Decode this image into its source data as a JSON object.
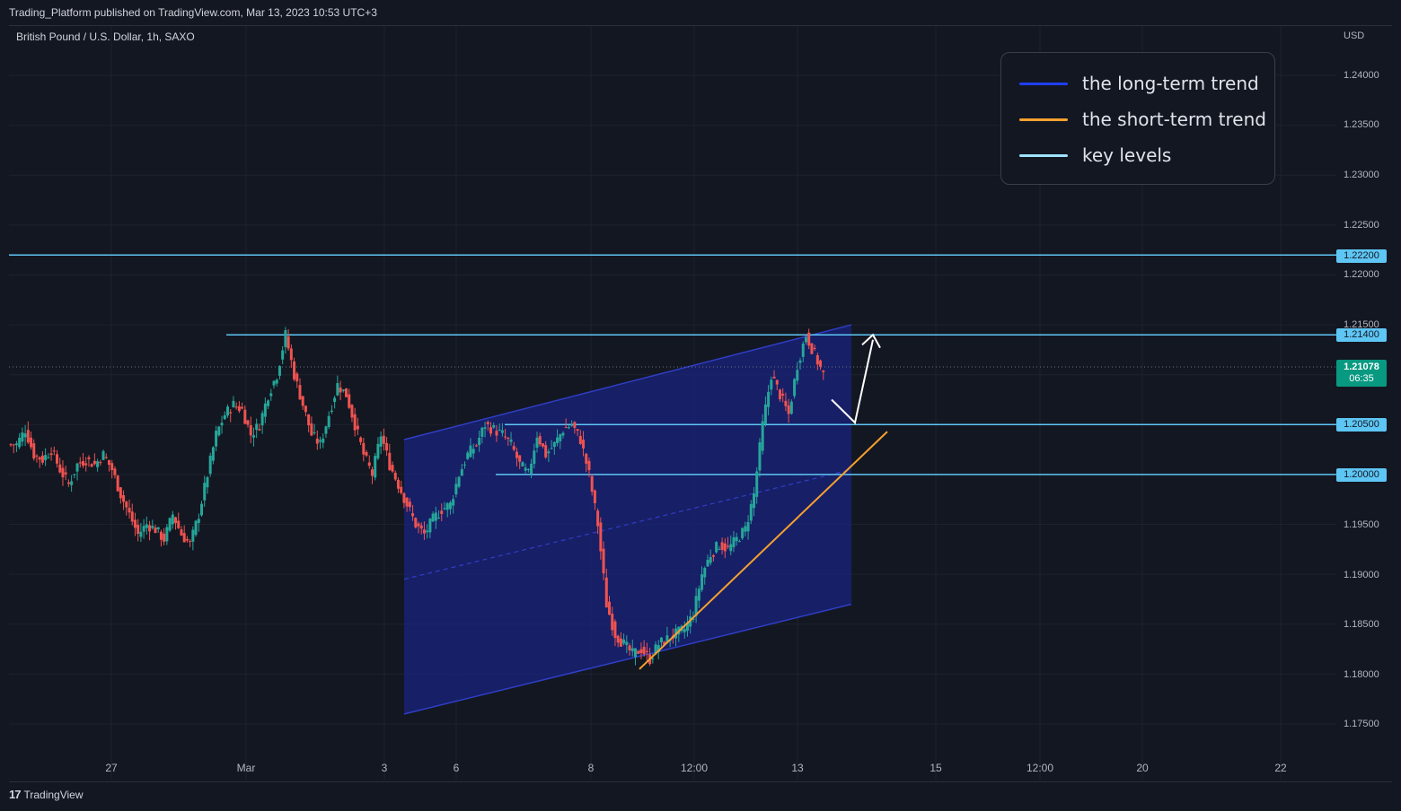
{
  "header": {
    "publish_text": "Trading_Platform published on TradingView.com, Mar 13, 2023 10:53 UTC+3"
  },
  "symbol": {
    "title": "British Pound / U.S. Dollar, 1h, SAXO",
    "currency": "USD"
  },
  "legend": {
    "items": [
      {
        "label": "the long-term trend",
        "color": "#1e3ff2"
      },
      {
        "label": "the short-term trend",
        "color": "#f7a12f"
      },
      {
        "label": "key levels",
        "color": "#9fe3ff"
      }
    ]
  },
  "price_axis": {
    "ticks": [
      "1.24000",
      "1.23500",
      "1.23000",
      "1.22500",
      "1.22000",
      "1.21500",
      "1.19500",
      "1.19000",
      "1.18500",
      "1.18000",
      "1.17500"
    ],
    "key_levels": [
      "1.22200",
      "1.21400",
      "1.20500",
      "1.20000"
    ],
    "current_price": "1.21078",
    "countdown": "06:35"
  },
  "time_axis": {
    "ticks": [
      "27",
      "Mar",
      "3",
      "6",
      "8",
      "12:00",
      "13",
      "15",
      "12:00",
      "20",
      "22"
    ]
  },
  "footer": {
    "brand": "TradingView",
    "logo_glyph": "17"
  },
  "colors": {
    "background": "#131722",
    "key_level": "#5ec6f4",
    "channel_fill": "#1a237e",
    "channel_line": "#2f3ec7",
    "up_candle": "#26a69a",
    "down_candle": "#ef5350",
    "short_trend": "#f7a12f"
  },
  "chart_data": {
    "type": "candlestick",
    "title": "British Pound / U.S. Dollar, 1h, SAXO",
    "y_unit": "USD",
    "ylim": [
      1.172,
      1.2435
    ],
    "key_levels": [
      1.222,
      1.214,
      1.205,
      1.2
    ],
    "current_price": 1.21078,
    "price_path": [
      [
        1.203,
        1.2045,
        1.202,
        1.2015,
        1.2025,
        1.2005,
        1.199,
        1.201,
        1.2015,
        1.201
      ],
      [
        1.202,
        1.2005,
        1.198,
        1.196,
        1.194,
        1.195,
        1.1945,
        1.1935,
        1.196,
        1.194
      ],
      [
        1.193,
        1.196,
        1.2,
        1.204,
        1.206,
        1.207,
        1.2065,
        1.204,
        1.205,
        1.208
      ],
      [
        1.21,
        1.214,
        1.21,
        1.207,
        1.204,
        1.203,
        1.206,
        1.209,
        1.208,
        1.205
      ],
      [
        1.202,
        1.2,
        1.204,
        1.201,
        1.199,
        1.197,
        1.195,
        1.194,
        1.1955,
        1.1965
      ],
      [
        1.197,
        1.2,
        1.202,
        1.203,
        1.205,
        1.2045,
        1.204,
        1.203,
        1.201,
        1.2
      ],
      [
        1.204,
        1.202,
        1.203,
        1.2045,
        1.205,
        1.2035,
        1.2,
        1.195,
        1.187,
        1.184
      ],
      [
        1.183,
        1.182,
        1.1825,
        1.1815,
        1.183,
        1.1835,
        1.184,
        1.1845,
        1.186,
        1.19
      ],
      [
        1.192,
        1.193,
        1.1925,
        1.1935,
        1.1945,
        1.198,
        1.205,
        1.21,
        1.208,
        1.206
      ],
      [
        1.211,
        1.214,
        1.212,
        1.21
      ]
    ],
    "channel": {
      "upper": [
        [
          1.2035,
          1.215
        ]
      ],
      "lower": [
        [
          1.176,
          1.187
        ]
      ],
      "mid": [
        [
          1.1895,
          1.2005
        ]
      ]
    },
    "annotations": [
      "the long-term trend",
      "the short-term trend",
      "key levels"
    ]
  }
}
